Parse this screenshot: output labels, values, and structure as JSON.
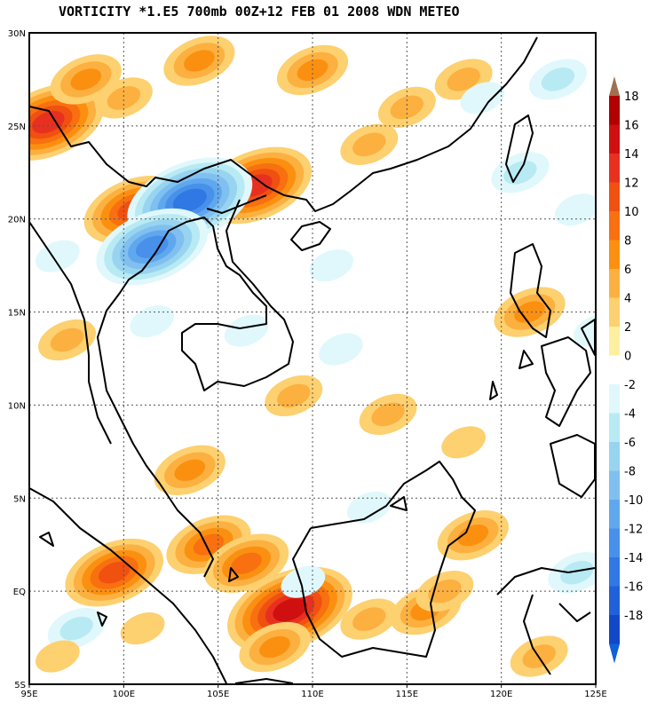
{
  "title": "VORTICITY *1.E5 700mb 00Z+12 FEB 01 2008 WDN METEO",
  "map": {
    "lon_range": [
      95,
      125
    ],
    "lat_range": [
      -5,
      30
    ],
    "lon_ticks": [
      "95E",
      "100E",
      "105E",
      "110E",
      "115E",
      "120E",
      "125E"
    ],
    "lat_ticks": [
      "30N",
      "25N",
      "20N",
      "15N",
      "10N",
      "5N",
      "EQ",
      "5S"
    ],
    "gridlines": true
  },
  "colorbar": {
    "labels": [
      "18",
      "16",
      "14",
      "12",
      "10",
      "8",
      "6",
      "4",
      "2",
      "0",
      "-2",
      "-4",
      "-6",
      "-8",
      "-10",
      "-12",
      "-14",
      "-16",
      "-18"
    ],
    "positive_colors": [
      "#b00000",
      "#d01010",
      "#e83020",
      "#f05010",
      "#f87010",
      "#fb9010",
      "#fcb040",
      "#fdd070",
      "#fef0a0"
    ],
    "negative_colors": [
      "#e0f8fc",
      "#b8eaf4",
      "#98d4f0",
      "#80c0f0",
      "#60a8ee",
      "#4890ea",
      "#3078e4",
      "#2060d8",
      "#1048c8"
    ]
  },
  "anomalies": [
    {
      "lon": 96.0,
      "lat": 25.2,
      "value": 12
    },
    {
      "lon": 100.5,
      "lat": 20.5,
      "value": 10
    },
    {
      "lon": 107.0,
      "lat": 21.8,
      "value": 12
    },
    {
      "lon": 103.5,
      "lat": 21.0,
      "value": -14
    },
    {
      "lon": 101.5,
      "lat": 18.5,
      "value": -12
    },
    {
      "lon": 98.0,
      "lat": 27.5,
      "value": 6
    },
    {
      "lon": 100.0,
      "lat": 26.5,
      "value": 4
    },
    {
      "lon": 104.0,
      "lat": 28.5,
      "value": 6
    },
    {
      "lon": 110.0,
      "lat": 28.0,
      "value": 6
    },
    {
      "lon": 115.0,
      "lat": 26.0,
      "value": 4
    },
    {
      "lon": 118.0,
      "lat": 27.5,
      "value": 4
    },
    {
      "lon": 113.0,
      "lat": 24.0,
      "value": 4
    },
    {
      "lon": 123.0,
      "lat": 27.5,
      "value": -4
    },
    {
      "lon": 119.0,
      "lat": 26.5,
      "value": -2
    },
    {
      "lon": 121.0,
      "lat": 22.5,
      "value": -4
    },
    {
      "lon": 124.0,
      "lat": 20.5,
      "value": -2
    },
    {
      "lon": 121.5,
      "lat": 15.0,
      "value": 6
    },
    {
      "lon": 125.0,
      "lat": 14.0,
      "value": -2
    },
    {
      "lon": 111.5,
      "lat": 13.0,
      "value": -2
    },
    {
      "lon": 111.0,
      "lat": 17.5,
      "value": -2
    },
    {
      "lon": 106.5,
      "lat": 14.0,
      "value": -2
    },
    {
      "lon": 109.0,
      "lat": 10.5,
      "value": 4
    },
    {
      "lon": 114.0,
      "lat": 9.5,
      "value": 4
    },
    {
      "lon": 103.5,
      "lat": 6.5,
      "value": 6
    },
    {
      "lon": 99.5,
      "lat": 1.0,
      "value": 10
    },
    {
      "lon": 104.5,
      "lat": 2.5,
      "value": 8
    },
    {
      "lon": 106.5,
      "lat": 1.5,
      "value": 8
    },
    {
      "lon": 108.8,
      "lat": -1.0,
      "value": 14
    },
    {
      "lon": 108.0,
      "lat": -3.0,
      "value": 6
    },
    {
      "lon": 116.0,
      "lat": -1.0,
      "value": 6
    },
    {
      "lon": 113.0,
      "lat": -1.5,
      "value": 4
    },
    {
      "lon": 118.5,
      "lat": 3.0,
      "value": 6
    },
    {
      "lon": 117.0,
      "lat": 0.0,
      "value": 4
    },
    {
      "lon": 124.0,
      "lat": 1.0,
      "value": -4
    },
    {
      "lon": 122.0,
      "lat": -3.5,
      "value": 4
    },
    {
      "lon": 97.5,
      "lat": -2.0,
      "value": -4
    },
    {
      "lon": 96.5,
      "lat": -3.5,
      "value": 2
    },
    {
      "lon": 101.0,
      "lat": -2.0,
      "value": 2
    },
    {
      "lon": 109.5,
      "lat": 0.5,
      "value": -2
    },
    {
      "lon": 113.0,
      "lat": 4.5,
      "value": -2
    },
    {
      "lon": 118.0,
      "lat": 8.0,
      "value": 2
    },
    {
      "lon": 97.0,
      "lat": 13.5,
      "value": 4
    },
    {
      "lon": 101.5,
      "lat": 14.5,
      "value": -2
    },
    {
      "lon": 96.5,
      "lat": 18.0,
      "value": -2
    }
  ]
}
